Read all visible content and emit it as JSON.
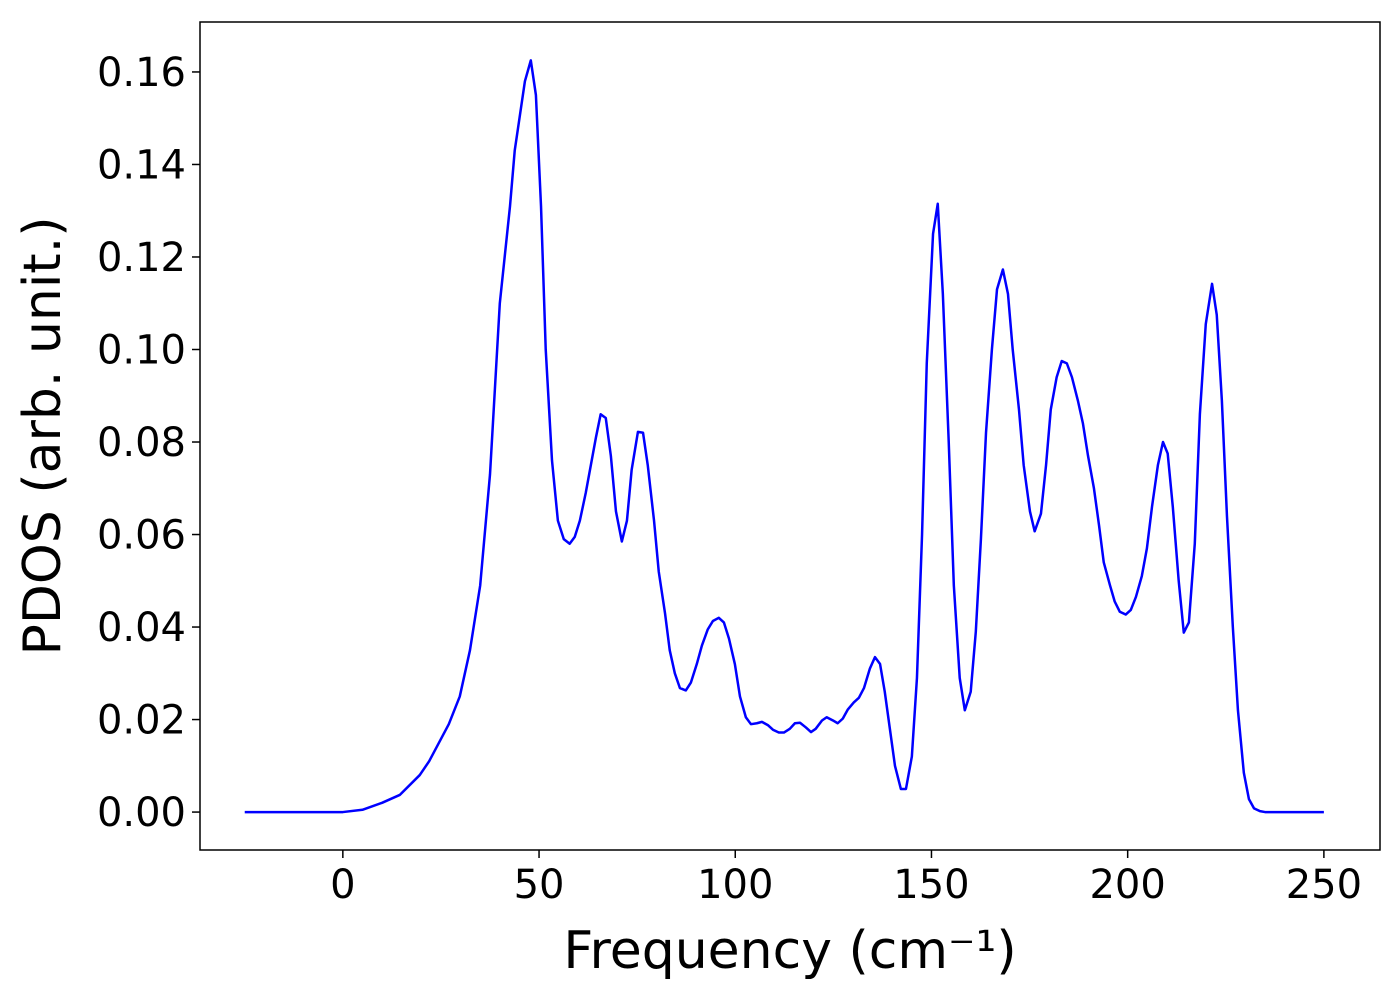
{
  "chart_data": {
    "type": "line",
    "x_label": "Frequency (cm⁻¹)",
    "y_label": "PDOS (arb. unit.)",
    "xlim": [
      -36.4,
      264.3
    ],
    "ylim": [
      -0.0082,
      0.1708
    ],
    "xticks": [
      0,
      50,
      100,
      150,
      200,
      250
    ],
    "yticks": [
      {
        "value": 0,
        "label": "0.00"
      },
      0.02,
      0.04,
      0.06,
      0.08,
      {
        "value": 0.1,
        "label": "0.10"
      },
      0.12,
      0.14,
      0.16
    ],
    "grid": false,
    "series": [
      {
        "color": "#0000ff",
        "x": [
          -25,
          -10,
          0,
          5,
          10,
          14.5,
          19.6,
          22,
          27,
          29.8,
          32.4,
          35,
          37.5,
          40,
          42.6,
          43.8,
          46.4,
          47.9,
          49.2,
          50.5,
          51.7,
          53.3,
          54.8,
          56.3,
          57.8,
          59.1,
          60.4,
          61.9,
          64.5,
          65.7,
          67,
          68.3,
          69.6,
          71.1,
          72.4,
          73.6,
          75.2,
          76.5,
          77.7,
          79.3,
          80.5,
          82.1,
          83.3,
          84.6,
          85.9,
          87.4,
          88.7,
          90.2,
          91.5,
          93,
          94.3,
          95.8,
          97.1,
          98.4,
          99.9,
          101.2,
          102.7,
          104,
          105.5,
          106.8,
          108.3,
          109.6,
          111.1,
          112.4,
          113.9,
          115.2,
          116.5,
          118,
          119.3,
          120.5,
          122.1,
          123.3,
          124.9,
          126.1,
          127.4,
          128.7,
          130.2,
          131.5,
          132.8,
          134.3,
          135.6,
          136.9,
          138.1,
          139.4,
          140.7,
          142.2,
          143.5,
          145,
          146.3,
          147.6,
          148.8,
          150.4,
          151.6,
          152.9,
          154.4,
          155.7,
          157.2,
          158.5,
          160,
          161.3,
          162.6,
          163.9,
          165.4,
          166.7,
          168.2,
          169.5,
          170.7,
          172.3,
          173.5,
          175.1,
          176.3,
          177.9,
          179.2,
          180.4,
          181.9,
          183.2,
          184.5,
          185.8,
          187.3,
          188.6,
          189.9,
          191.4,
          192.7,
          193.9,
          195.5,
          196.7,
          198,
          199.5,
          200.8,
          202.1,
          203.6,
          204.9,
          206.2,
          207.7,
          209,
          210.2,
          211.5,
          213,
          214.3,
          215.6,
          217.1,
          218.4,
          219.9,
          221.5,
          222.7,
          224,
          225.3,
          226.8,
          228.1,
          229.6,
          230.9,
          232.2,
          233.7,
          235,
          250
        ],
        "values": [
          0,
          0,
          0,
          0.0005,
          0.002,
          0.0037,
          0.008,
          0.011,
          0.019,
          0.025,
          0.035,
          0.049,
          0.073,
          0.11,
          0.131,
          0.143,
          0.158,
          0.1625,
          0.155,
          0.131,
          0.1,
          0.076,
          0.063,
          0.059,
          0.058,
          0.0595,
          0.063,
          0.069,
          0.081,
          0.086,
          0.0852,
          0.077,
          0.065,
          0.0585,
          0.063,
          0.074,
          0.0822,
          0.082,
          0.075,
          0.063,
          0.052,
          0.043,
          0.035,
          0.03,
          0.0268,
          0.0263,
          0.028,
          0.032,
          0.036,
          0.0395,
          0.0413,
          0.042,
          0.041,
          0.0375,
          0.032,
          0.025,
          0.0205,
          0.019,
          0.0192,
          0.0195,
          0.0188,
          0.0178,
          0.0172,
          0.0172,
          0.018,
          0.0192,
          0.0193,
          0.0183,
          0.0173,
          0.018,
          0.0198,
          0.0205,
          0.0198,
          0.0192,
          0.0202,
          0.0222,
          0.0237,
          0.0247,
          0.0268,
          0.031,
          0.0335,
          0.032,
          0.026,
          0.018,
          0.01,
          0.005,
          0.005,
          0.012,
          0.029,
          0.06,
          0.097,
          0.125,
          0.1315,
          0.112,
          0.08,
          0.049,
          0.029,
          0.022,
          0.026,
          0.039,
          0.059,
          0.082,
          0.1,
          0.113,
          0.1173,
          0.112,
          0.1,
          0.087,
          0.075,
          0.065,
          0.0607,
          0.0645,
          0.075,
          0.087,
          0.094,
          0.0975,
          0.097,
          0.094,
          0.089,
          0.084,
          0.077,
          0.07,
          0.062,
          0.054,
          0.049,
          0.0455,
          0.0433,
          0.0427,
          0.0437,
          0.0465,
          0.051,
          0.057,
          0.066,
          0.075,
          0.08,
          0.0775,
          0.066,
          0.05,
          0.0388,
          0.041,
          0.058,
          0.086,
          0.1055,
          0.1142,
          0.1075,
          0.089,
          0.064,
          0.04,
          0.022,
          0.0085,
          0.0028,
          0.0008,
          0.0002,
          0,
          0
        ]
      }
    ]
  }
}
